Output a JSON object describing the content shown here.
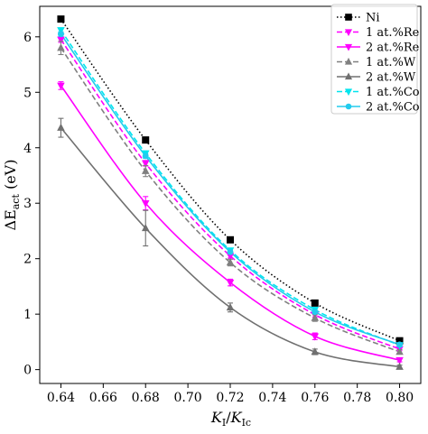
{
  "chart_data": {
    "type": "line",
    "xlabel": {
      "main": "K",
      "sub1": "I",
      "sep": "/",
      "main2": "K",
      "sub2": "Ic"
    },
    "ylabel": {
      "prefix": "ΔE",
      "sub": "act",
      "suffix": " (eV)"
    },
    "xlim": [
      0.63,
      0.81
    ],
    "ylim": [
      -0.25,
      6.55
    ],
    "xticks": [
      0.64,
      0.66,
      0.68,
      0.7,
      0.72,
      0.74,
      0.76,
      0.78,
      0.8
    ],
    "xtick_labels": [
      "0.64",
      "0.66",
      "0.68",
      "0.70",
      "0.72",
      "0.74",
      "0.76",
      "0.78",
      "0.80"
    ],
    "yticks": [
      0,
      1,
      2,
      3,
      4,
      5,
      6
    ],
    "ytick_labels": [
      "0",
      "1",
      "2",
      "3",
      "4",
      "5",
      "6"
    ],
    "grid": false,
    "legend_position": "top-right",
    "x": [
      0.64,
      0.68,
      0.72,
      0.76,
      0.8
    ],
    "series": [
      {
        "name": "Ni",
        "color": "#000000",
        "dash": "dotted",
        "marker": "square",
        "values": [
          6.32,
          4.14,
          2.34,
          1.2,
          0.52
        ],
        "errors": [
          0,
          0,
          0,
          0,
          0
        ]
      },
      {
        "name": "1 at.%Re",
        "color": "#ff00ff",
        "dash": "dashed",
        "marker": "triangle-down",
        "values": [
          5.95,
          3.72,
          2.05,
          0.99,
          0.37
        ],
        "errors": [
          0.05,
          0.05,
          0.04,
          0.04,
          0.03
        ]
      },
      {
        "name": "2 at.%Re",
        "color": "#ff00ff",
        "dash": "solid",
        "marker": "triangle-down",
        "values": [
          5.12,
          3.0,
          1.57,
          0.6,
          0.17
        ],
        "errors": [
          0.07,
          0.12,
          0.06,
          0.06,
          0.03
        ]
      },
      {
        "name": "1 at.%W",
        "color": "#808080",
        "dash": "dashed",
        "marker": "triangle-up",
        "values": [
          5.8,
          3.58,
          1.93,
          0.93,
          0.32
        ],
        "errors": [
          0.12,
          0.1,
          0.06,
          0.06,
          0.04
        ]
      },
      {
        "name": "2 at.%W",
        "color": "#707070",
        "dash": "solid",
        "marker": "triangle-up",
        "values": [
          4.36,
          2.55,
          1.12,
          0.32,
          0.05
        ],
        "errors": [
          0.17,
          0.32,
          0.08,
          0.05,
          0.03
        ]
      },
      {
        "name": "1 at.%Co",
        "color": "#00e5ee",
        "dash": "dashed",
        "marker": "triangle-down",
        "values": [
          6.12,
          3.9,
          2.15,
          1.08,
          0.44
        ],
        "errors": [
          0.04,
          0.04,
          0.03,
          0.03,
          0.03
        ]
      },
      {
        "name": "2 at.%Co",
        "color": "#22ccee",
        "dash": "solid",
        "marker": "circle",
        "values": [
          6.05,
          3.85,
          2.12,
          1.04,
          0.45
        ],
        "errors": [
          0.04,
          0.04,
          0.03,
          0.03,
          0.03
        ]
      }
    ]
  }
}
